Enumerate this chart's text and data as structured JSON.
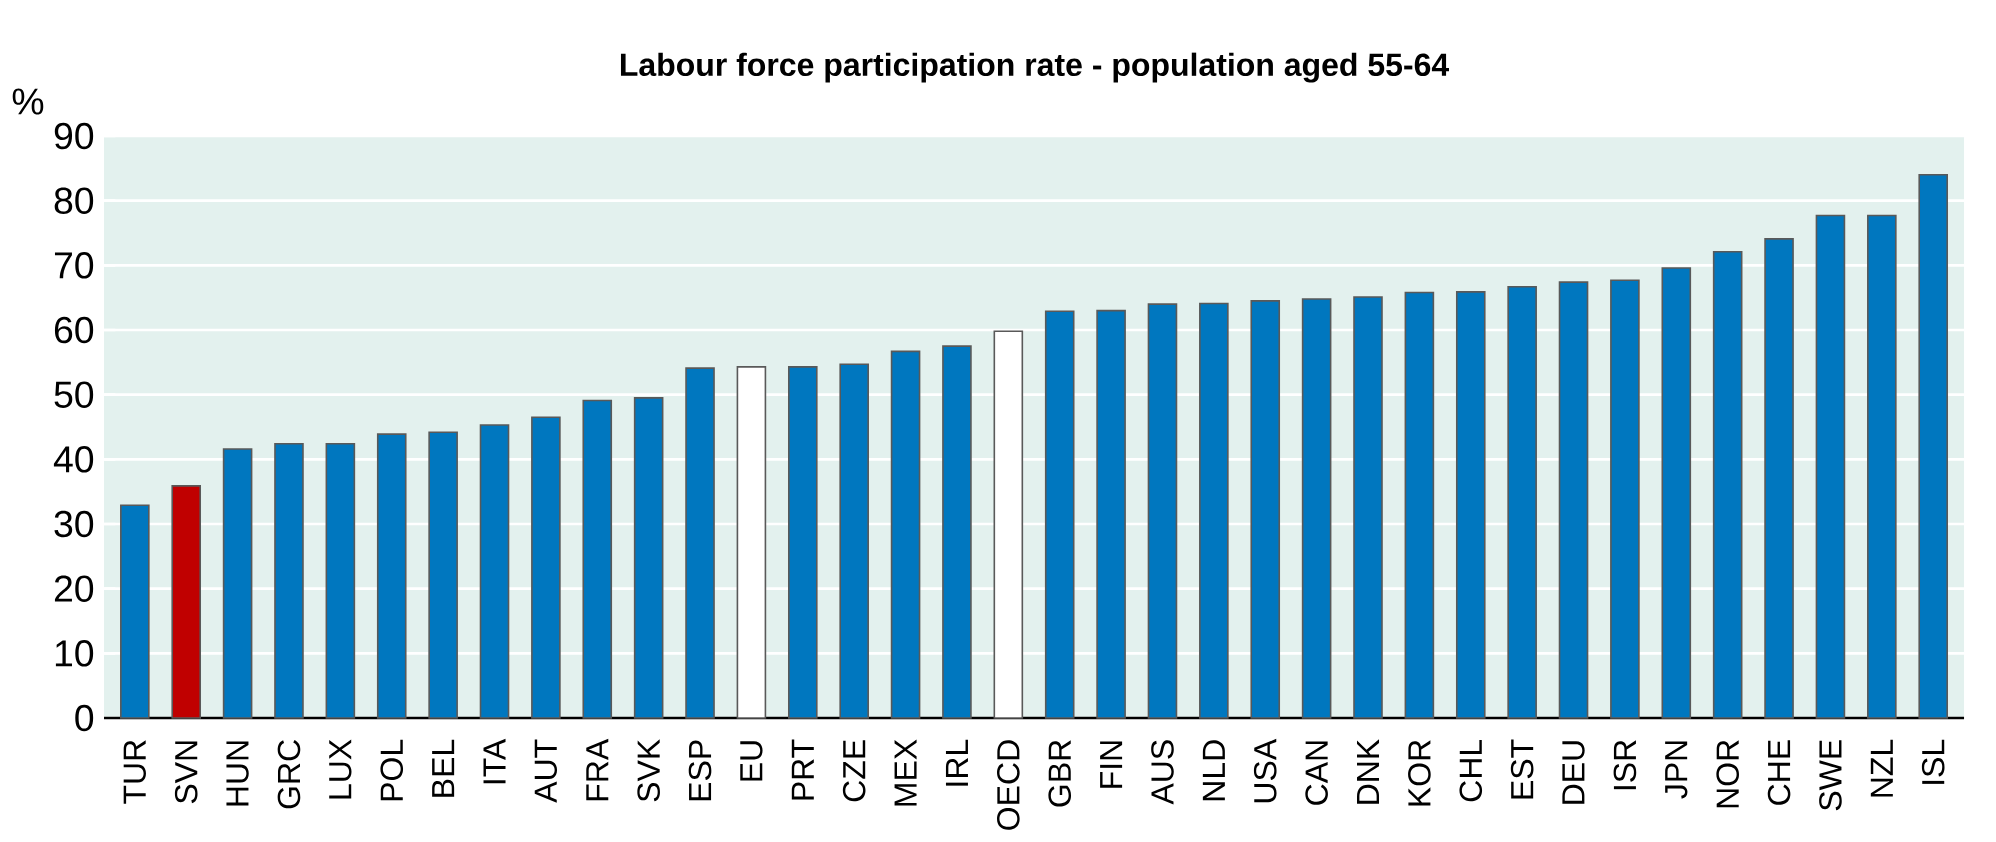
{
  "chart_data": {
    "type": "bar",
    "title": "Labour force participation rate - population aged 55-64",
    "ylabel": "%",
    "categories": [
      "TUR",
      "SVN",
      "HUN",
      "GRC",
      "LUX",
      "POL",
      "BEL",
      "ITA",
      "AUT",
      "FRA",
      "SVK",
      "ESP",
      "EU",
      "PRT",
      "CZE",
      "MEX",
      "IRL",
      "OECD",
      "GBR",
      "FIN",
      "AUS",
      "NLD",
      "USA",
      "CAN",
      "DNK",
      "KOR",
      "CHL",
      "EST",
      "DEU",
      "ISR",
      "JPN",
      "NOR",
      "CHE",
      "SWE",
      "NZL",
      "ISL"
    ],
    "values": [
      32.9,
      35.9,
      41.6,
      42.4,
      42.4,
      43.9,
      44.2,
      45.3,
      46.5,
      49.1,
      49.5,
      54.1,
      54.3,
      54.3,
      54.7,
      56.7,
      57.5,
      59.8,
      62.9,
      63.0,
      64.0,
      64.1,
      64.5,
      64.8,
      65.1,
      65.8,
      65.9,
      66.7,
      67.4,
      67.7,
      69.6,
      72.1,
      74.1,
      77.7,
      77.7,
      84.0
    ],
    "colors": [
      "#0077bf",
      "#c00000",
      "#0077bf",
      "#0077bf",
      "#0077bf",
      "#0077bf",
      "#0077bf",
      "#0077bf",
      "#0077bf",
      "#0077bf",
      "#0077bf",
      "#0077bf",
      "#ffffff",
      "#0077bf",
      "#0077bf",
      "#0077bf",
      "#0077bf",
      "#ffffff",
      "#0077bf",
      "#0077bf",
      "#0077bf",
      "#0077bf",
      "#0077bf",
      "#0077bf",
      "#0077bf",
      "#0077bf",
      "#0077bf",
      "#0077bf",
      "#0077bf",
      "#0077bf",
      "#0077bf",
      "#0077bf",
      "#0077bf",
      "#0077bf",
      "#0077bf",
      "#0077bf"
    ],
    "ylim": [
      0,
      90
    ],
    "yticks": [
      0,
      10,
      20,
      30,
      40,
      50,
      60,
      70,
      80,
      90
    ],
    "grid": "y"
  }
}
